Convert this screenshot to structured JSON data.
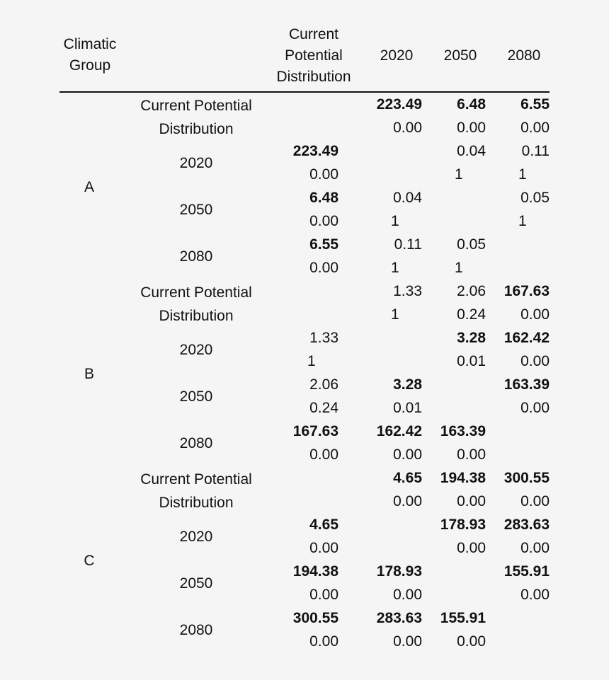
{
  "header": {
    "group_label": "Climatic\nGroup",
    "columns": [
      "Current\nPotential\nDistribution",
      "2020",
      "2050",
      "2080"
    ]
  },
  "groups": [
    {
      "name": "A",
      "rows": [
        {
          "label": "Current Potential\nDistribution",
          "values": [
            null,
            "223.49",
            "6.48",
            "6.55"
          ],
          "bold": [
            false,
            true,
            true,
            true
          ],
          "p": [
            null,
            "0.00",
            "0.00",
            "0.00"
          ]
        },
        {
          "label": "2020",
          "values": [
            "223.49",
            null,
            "0.04",
            "0.11"
          ],
          "bold": [
            true,
            false,
            false,
            false
          ],
          "p": [
            "0.00",
            null,
            "1",
            "1"
          ]
        },
        {
          "label": "2050",
          "values": [
            "6.48",
            "0.04",
            null,
            "0.05"
          ],
          "bold": [
            true,
            false,
            false,
            false
          ],
          "p": [
            "0.00",
            "1",
            null,
            "1"
          ]
        },
        {
          "label": "2080",
          "values": [
            "6.55",
            "0.11",
            "0.05",
            null
          ],
          "bold": [
            true,
            false,
            false,
            false
          ],
          "p": [
            "0.00",
            "1",
            "1",
            null
          ]
        }
      ]
    },
    {
      "name": "B",
      "rows": [
        {
          "label": "Current Potential\nDistribution",
          "values": [
            null,
            "1.33",
            "2.06",
            "167.63"
          ],
          "bold": [
            false,
            false,
            false,
            true
          ],
          "p": [
            null,
            "1",
            "0.24",
            "0.00"
          ]
        },
        {
          "label": "2020",
          "values": [
            "1.33",
            null,
            "3.28",
            "162.42"
          ],
          "bold": [
            false,
            false,
            true,
            true
          ],
          "p": [
            "1",
            null,
            "0.01",
            "0.00"
          ]
        },
        {
          "label": "2050",
          "values": [
            "2.06",
            "3.28",
            null,
            "163.39"
          ],
          "bold": [
            false,
            true,
            false,
            true
          ],
          "p": [
            "0.24",
            "0.01",
            null,
            "0.00"
          ]
        },
        {
          "label": "2080",
          "values": [
            "167.63",
            "162.42",
            "163.39",
            null
          ],
          "bold": [
            true,
            true,
            true,
            false
          ],
          "p": [
            "0.00",
            "0.00",
            "0.00",
            null
          ]
        }
      ]
    },
    {
      "name": "C",
      "rows": [
        {
          "label": "Current Potential\nDistribution",
          "values": [
            null,
            "4.65",
            "194.38",
            "300.55"
          ],
          "bold": [
            false,
            true,
            true,
            true
          ],
          "p": [
            null,
            "0.00",
            "0.00",
            "0.00"
          ]
        },
        {
          "label": "2020",
          "values": [
            "4.65",
            null,
            "178.93",
            "283.63"
          ],
          "bold": [
            true,
            false,
            true,
            true
          ],
          "p": [
            "0.00",
            null,
            "0.00",
            "0.00"
          ]
        },
        {
          "label": "2050",
          "values": [
            "194.38",
            "178.93",
            null,
            "155.91"
          ],
          "bold": [
            true,
            true,
            false,
            true
          ],
          "p": [
            "0.00",
            "0.00",
            null,
            "0.00"
          ]
        },
        {
          "label": "2080",
          "values": [
            "300.55",
            "283.63",
            "155.91",
            null
          ],
          "bold": [
            true,
            true,
            true,
            false
          ],
          "p": [
            "0.00",
            "0.00",
            "0.00",
            null
          ]
        }
      ]
    }
  ]
}
